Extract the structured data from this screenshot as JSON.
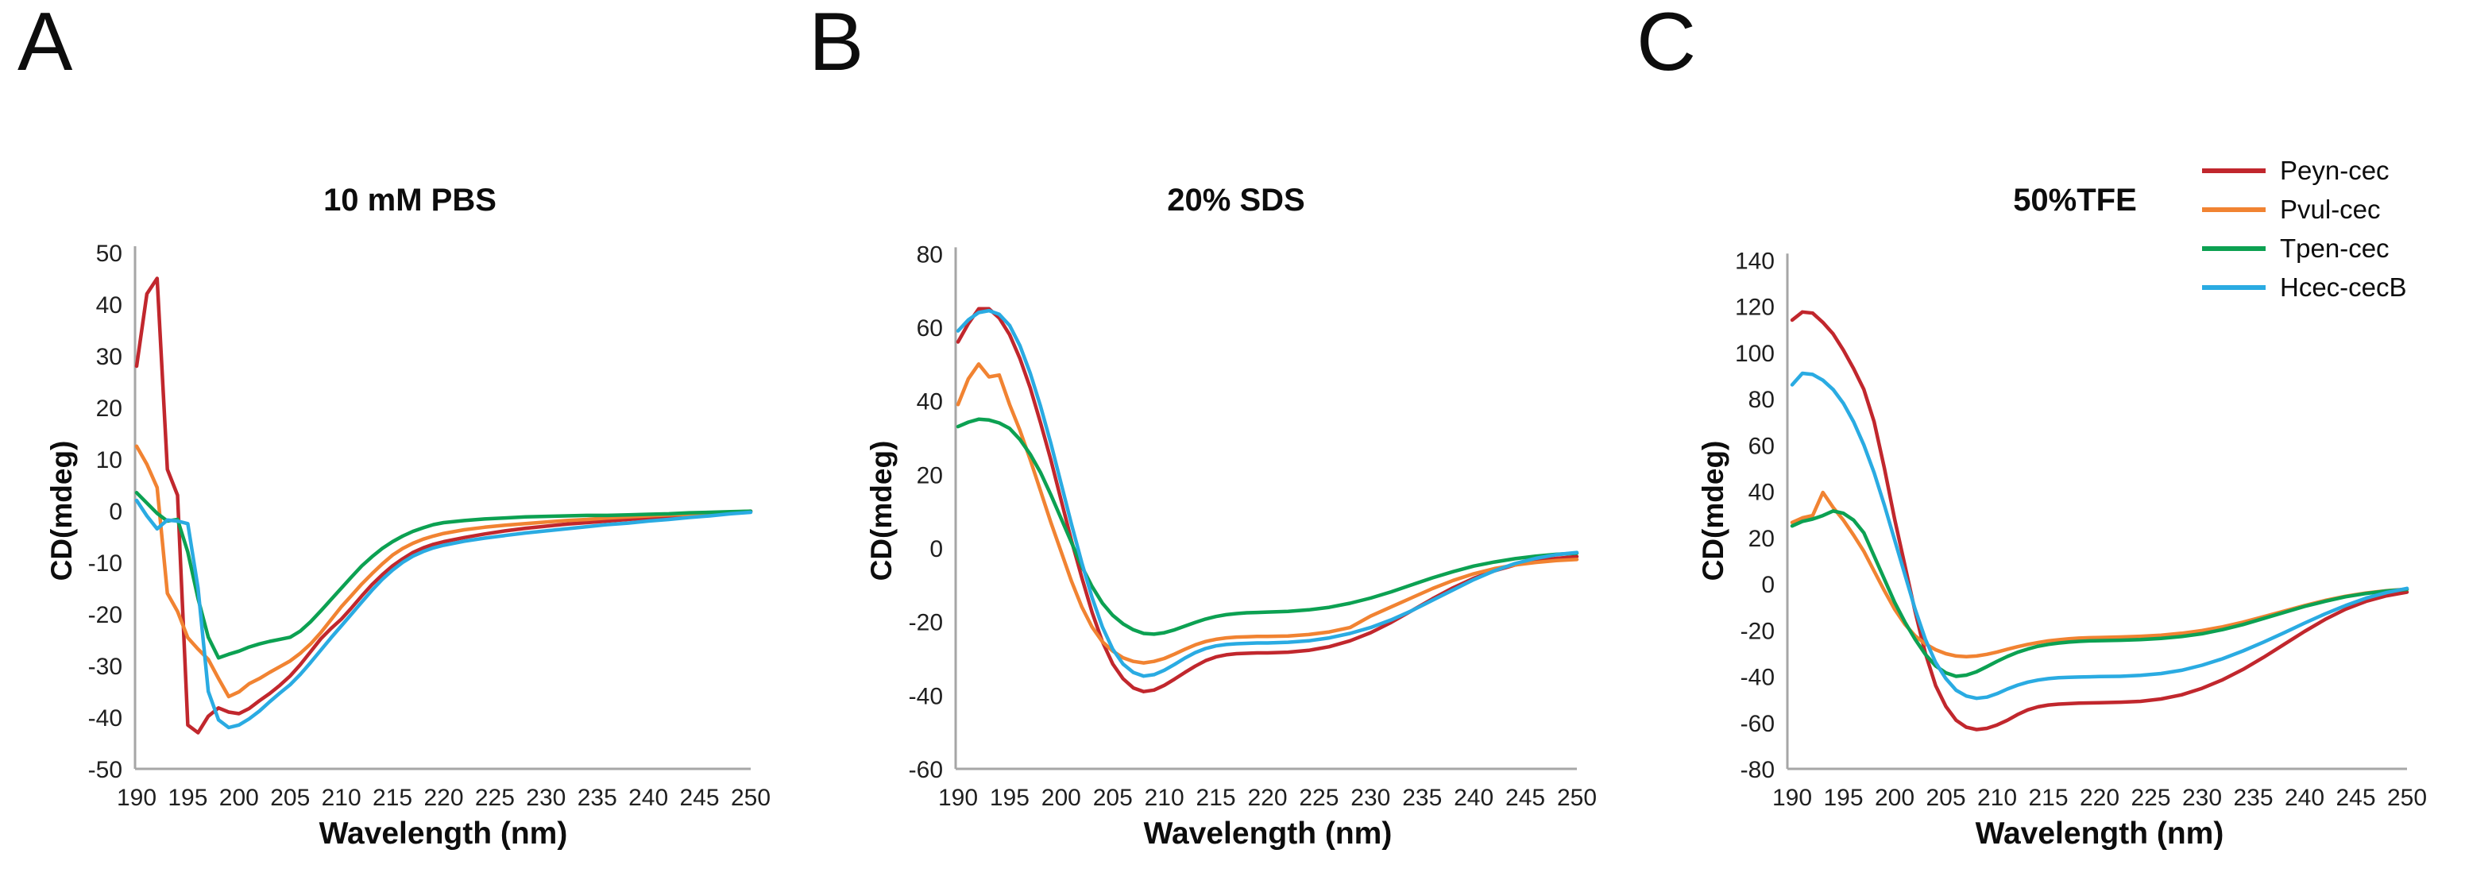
{
  "figure": {
    "panel_labels": [
      "A",
      "B",
      "C"
    ],
    "background": "#ffffff",
    "axis_color": "#a6a6a6",
    "text_color": "#1f1f1f"
  },
  "legend": {
    "position": "top-right",
    "items": [
      {
        "label": "Peyn-cec",
        "color": "#c1272d"
      },
      {
        "label": "Pvul-cec",
        "color": "#f18332"
      },
      {
        "label": "Tpen-cec",
        "color": "#0ca152"
      },
      {
        "label": "Hcec-cecB",
        "color": "#2aabe2"
      }
    ]
  },
  "chart_data": [
    {
      "panel": "A",
      "type": "line",
      "title": "10 mM PBS",
      "xlabel": "Wavelength (nm)",
      "ylabel": "CD(mdeg)",
      "xlim": [
        190,
        250
      ],
      "xtick_step": 5,
      "ylim": [
        -50,
        50
      ],
      "ytick_step": 10,
      "grid": false,
      "x": [
        190,
        191,
        192,
        193,
        194,
        195,
        196,
        197,
        198,
        199,
        200,
        201,
        202,
        203,
        204,
        205,
        206,
        207,
        208,
        209,
        210,
        211,
        212,
        213,
        214,
        215,
        216,
        217,
        218,
        219,
        220,
        222,
        224,
        226,
        228,
        230,
        232,
        234,
        236,
        238,
        240,
        242,
        244,
        246,
        248,
        250
      ],
      "series": [
        {
          "name": "Peyn-cec",
          "color": "#c1272d",
          "y": [
            28,
            42,
            45,
            8,
            3,
            -41.5,
            -43,
            -39.8,
            -38.2,
            -39,
            -39.3,
            -38.3,
            -36.8,
            -35.4,
            -33.8,
            -32,
            -29.8,
            -27.3,
            -24.8,
            -22.8,
            -21,
            -18.8,
            -16.5,
            -14.3,
            -12.4,
            -10.7,
            -9.3,
            -8.1,
            -7.2,
            -6.5,
            -6,
            -5.2,
            -4.5,
            -3.9,
            -3.4,
            -3,
            -2.6,
            -2.3,
            -2,
            -1.7,
            -1.4,
            -1.1,
            -0.8,
            -0.6,
            -0.3,
            -0.1
          ]
        },
        {
          "name": "Pvul-cec",
          "color": "#f18332",
          "y": [
            12.5,
            9,
            4.5,
            -16,
            -19.5,
            -24.6,
            -26.8,
            -28.8,
            -32.5,
            -36,
            -35.1,
            -33.5,
            -32.5,
            -31.3,
            -30.2,
            -29.1,
            -27.6,
            -25.8,
            -23.6,
            -21.1,
            -18.6,
            -16.4,
            -14.2,
            -12.2,
            -10.3,
            -8.6,
            -7.3,
            -6.3,
            -5.5,
            -4.9,
            -4.4,
            -3.7,
            -3.2,
            -2.8,
            -2.5,
            -2.2,
            -1.9,
            -1.7,
            -1.4,
            -1.2,
            -1,
            -0.8,
            -0.7,
            -0.5,
            -0.3,
            -0.2
          ]
        },
        {
          "name": "Tpen-cec",
          "color": "#0ca152",
          "y": [
            3.5,
            1.5,
            -0.5,
            -2,
            -1.7,
            -8,
            -17,
            -24.5,
            -28.5,
            -27.8,
            -27.2,
            -26.4,
            -25.8,
            -25.3,
            -24.9,
            -24.5,
            -23.3,
            -21.5,
            -19.4,
            -17.2,
            -15,
            -12.8,
            -10.7,
            -8.9,
            -7.3,
            -6,
            -4.9,
            -4,
            -3.3,
            -2.7,
            -2.3,
            -1.9,
            -1.6,
            -1.4,
            -1.2,
            -1.1,
            -1,
            -0.9,
            -0.9,
            -0.8,
            -0.7,
            -0.6,
            -0.4,
            -0.3,
            -0.2,
            -0.1
          ]
        },
        {
          "name": "Hcec-cecB",
          "color": "#2aabe2",
          "y": [
            2,
            -1,
            -3.5,
            -1.8,
            -2,
            -2.5,
            -15,
            -35,
            -40.5,
            -42,
            -41.5,
            -40.3,
            -38.8,
            -37,
            -35.3,
            -33.7,
            -31.7,
            -29.4,
            -27,
            -24.6,
            -22.3,
            -20,
            -17.7,
            -15.4,
            -13.3,
            -11.5,
            -10,
            -8.8,
            -7.9,
            -7.2,
            -6.7,
            -5.9,
            -5.3,
            -4.8,
            -4.3,
            -3.9,
            -3.5,
            -3.1,
            -2.7,
            -2.4,
            -2,
            -1.7,
            -1.3,
            -1,
            -0.6,
            -0.3
          ]
        }
      ]
    },
    {
      "panel": "B",
      "type": "line",
      "title": "20% SDS",
      "xlabel": "Wavelength (nm)",
      "ylabel": "CD(mdeg)",
      "xlim": [
        190,
        250
      ],
      "xtick_step": 5,
      "ylim": [
        -60,
        80
      ],
      "ytick_step": 20,
      "grid": false,
      "x": [
        190,
        191,
        192,
        193,
        194,
        195,
        196,
        197,
        198,
        199,
        200,
        201,
        202,
        203,
        204,
        205,
        206,
        207,
        208,
        209,
        210,
        211,
        212,
        213,
        214,
        215,
        216,
        217,
        218,
        219,
        220,
        222,
        224,
        226,
        228,
        230,
        232,
        234,
        236,
        238,
        240,
        242,
        244,
        246,
        248,
        250
      ],
      "series": [
        {
          "name": "Peyn-cec",
          "color": "#c1272d",
          "y": [
            56,
            61,
            65,
            65,
            62.5,
            58,
            51.5,
            43.5,
            34,
            24,
            13,
            2,
            -8,
            -17.5,
            -25.5,
            -31.5,
            -35.5,
            -38,
            -39,
            -38.6,
            -37.3,
            -35.6,
            -33.8,
            -32.1,
            -30.6,
            -29.6,
            -29,
            -28.7,
            -28.6,
            -28.5,
            -28.5,
            -28.3,
            -27.8,
            -26.8,
            -25.2,
            -23,
            -20.2,
            -17,
            -13.8,
            -10.8,
            -8.2,
            -6.2,
            -4.6,
            -3.5,
            -2.8,
            -2.3
          ]
        },
        {
          "name": "Pvul-cec",
          "color": "#f18332",
          "y": [
            39,
            46,
            50,
            46.5,
            47,
            39,
            32,
            24,
            15.5,
            7,
            -1,
            -9,
            -16,
            -21.5,
            -25.5,
            -28,
            -29.8,
            -30.8,
            -31.2,
            -30.8,
            -30,
            -28.8,
            -27.5,
            -26.3,
            -25.4,
            -24.8,
            -24.4,
            -24.2,
            -24.1,
            -24,
            -24,
            -23.9,
            -23.5,
            -22.8,
            -21.6,
            -18.5,
            -16,
            -13.5,
            -11,
            -8.8,
            -7,
            -5.6,
            -4.6,
            -3.9,
            -3.4,
            -3.1
          ]
        },
        {
          "name": "Tpen-cec",
          "color": "#0ca152",
          "y": [
            33,
            34.2,
            35,
            34.8,
            34,
            32.5,
            29.5,
            25.5,
            20.5,
            14.5,
            8,
            1.5,
            -5,
            -10.5,
            -15,
            -18.3,
            -20.6,
            -22.2,
            -23.2,
            -23.4,
            -23,
            -22.2,
            -21.2,
            -20.2,
            -19.3,
            -18.6,
            -18.1,
            -17.8,
            -17.6,
            -17.5,
            -17.4,
            -17.2,
            -16.8,
            -16.1,
            -15,
            -13.6,
            -11.9,
            -10,
            -8.1,
            -6.4,
            -4.9,
            -3.8,
            -2.9,
            -2.2,
            -1.7,
            -1.4
          ]
        },
        {
          "name": "Hcec-cecB",
          "color": "#2aabe2",
          "y": [
            59,
            62,
            64,
            64.5,
            63.5,
            60.5,
            55,
            47.5,
            38.5,
            28.5,
            17.5,
            6.5,
            -4,
            -13.5,
            -21.5,
            -27.5,
            -31.5,
            -33.8,
            -34.8,
            -34.4,
            -33.2,
            -31.6,
            -29.9,
            -28.4,
            -27.3,
            -26.6,
            -26.2,
            -26,
            -25.9,
            -25.8,
            -25.8,
            -25.6,
            -25.2,
            -24.4,
            -23.2,
            -21.6,
            -19.5,
            -17,
            -14.2,
            -11.4,
            -8.6,
            -6.2,
            -4.2,
            -2.8,
            -1.8,
            -1.2
          ]
        }
      ]
    },
    {
      "panel": "C",
      "type": "line",
      "title": "50%TFE",
      "xlabel": "Wavelength (nm)",
      "ylabel": "CD(mdeg)",
      "xlim": [
        190,
        250
      ],
      "xtick_step": 5,
      "ylim": [
        -80,
        140
      ],
      "ytick_step": 20,
      "grid": false,
      "x": [
        190,
        191,
        192,
        193,
        194,
        195,
        196,
        197,
        198,
        199,
        200,
        201,
        202,
        203,
        204,
        205,
        206,
        207,
        208,
        209,
        210,
        211,
        212,
        213,
        214,
        215,
        216,
        217,
        218,
        219,
        220,
        222,
        224,
        226,
        228,
        230,
        232,
        234,
        236,
        238,
        240,
        242,
        244,
        246,
        248,
        250
      ],
      "series": [
        {
          "name": "Peyn-cec",
          "color": "#c1272d",
          "y": [
            114,
            117.5,
            117,
            113,
            108,
            101,
            93,
            84,
            70,
            50,
            28,
            8,
            -12,
            -30,
            -44,
            -53,
            -59,
            -62,
            -63,
            -62.5,
            -61,
            -59,
            -56.5,
            -54.5,
            -53.2,
            -52.4,
            -52,
            -51.8,
            -51.6,
            -51.5,
            -51.4,
            -51.2,
            -50.8,
            -49.8,
            -48,
            -45.2,
            -41.5,
            -37,
            -31.8,
            -26.2,
            -20.6,
            -15.4,
            -11,
            -7.6,
            -5.2,
            -3.6
          ]
        },
        {
          "name": "Pvul-cec",
          "color": "#f18332",
          "y": [
            26.5,
            28.5,
            29.5,
            39.5,
            33,
            27.5,
            21,
            14,
            5.5,
            -3,
            -11,
            -17.5,
            -22.5,
            -26,
            -28.5,
            -30.2,
            -31.2,
            -31.5,
            -31.2,
            -30.5,
            -29.5,
            -28.3,
            -27.2,
            -26.2,
            -25.4,
            -24.7,
            -24.2,
            -23.8,
            -23.5,
            -23.3,
            -23.2,
            -23,
            -22.7,
            -22.2,
            -21.4,
            -20.2,
            -18.6,
            -16.6,
            -14.2,
            -11.8,
            -9.4,
            -7.2,
            -5.4,
            -4,
            -3,
            -2.3
          ]
        },
        {
          "name": "Tpen-cec",
          "color": "#0ca152",
          "y": [
            25,
            27,
            28,
            29.5,
            31.5,
            30.5,
            27.5,
            22,
            12,
            2,
            -8,
            -16.5,
            -24,
            -30.5,
            -35.5,
            -38.5,
            -40,
            -39.5,
            -38,
            -35.8,
            -33.5,
            -31.4,
            -29.6,
            -28.2,
            -27,
            -26.2,
            -25.6,
            -25.2,
            -24.9,
            -24.7,
            -24.6,
            -24.4,
            -24.1,
            -23.6,
            -22.8,
            -21.6,
            -19.8,
            -17.6,
            -15,
            -12.4,
            -9.8,
            -7.6,
            -5.6,
            -4.2,
            -3.1,
            -2.4
          ]
        },
        {
          "name": "Hcec-cecB",
          "color": "#2aabe2",
          "y": [
            86,
            91,
            90.5,
            88,
            84,
            78,
            70,
            60,
            48,
            34,
            19,
            4,
            -11,
            -24,
            -34,
            -41,
            -46,
            -48.5,
            -49.5,
            -49,
            -47.5,
            -45.5,
            -43.8,
            -42.5,
            -41.6,
            -41,
            -40.6,
            -40.4,
            -40.3,
            -40.2,
            -40.1,
            -40,
            -39.6,
            -38.8,
            -37.4,
            -35.2,
            -32.4,
            -29,
            -25.2,
            -21.2,
            -17,
            -13,
            -9.4,
            -6.2,
            -3.8,
            -2
          ]
        }
      ]
    }
  ]
}
